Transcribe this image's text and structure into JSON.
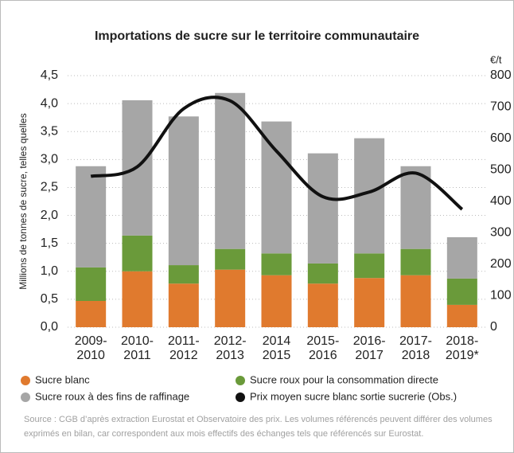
{
  "chart_data": {
    "type": "bar",
    "stacked": true,
    "title": "Importations de sucre sur le territoire communautaire",
    "ylabel": "Millions de tonnes de sucre, telles quelles",
    "y2label": "€/t",
    "categories": [
      "2009-\n2010",
      "2010-\n2011",
      "2011-\n2012",
      "2012-\n2013",
      "2014\n2015",
      "2015-\n2016",
      "2016-\n2017",
      "2017-\n2018",
      "2018-\n2019*"
    ],
    "series": [
      {
        "name": "Sucre blanc",
        "color": "#e07a2e",
        "values": [
          0.47,
          1.0,
          0.78,
          1.03,
          0.93,
          0.78,
          0.88,
          0.93,
          0.4
        ]
      },
      {
        "name": "Sucre roux pour la consommation directe",
        "color": "#6a9a3a",
        "values": [
          0.6,
          0.64,
          0.33,
          0.37,
          0.39,
          0.36,
          0.44,
          0.47,
          0.47
        ]
      },
      {
        "name": "Sucre roux à des fins de raffinage",
        "color": "#a6a6a6",
        "values": [
          1.81,
          2.42,
          2.66,
          2.79,
          2.36,
          1.97,
          2.06,
          1.48,
          0.74
        ]
      },
      {
        "name": "Prix moyen sucre blanc sortie sucrerie (Obs.)",
        "color": "#111111",
        "type": "line",
        "axis": "y2",
        "values": [
          480,
          510,
          695,
          720,
          560,
          415,
          430,
          490,
          375
        ]
      }
    ],
    "ylim": [
      0,
      4.5
    ],
    "yticks": [
      {
        "value": 0,
        "label": "0,0"
      },
      {
        "value": 0.5,
        "label": "0,5"
      },
      {
        "value": 1,
        "label": "1,0"
      },
      {
        "value": 1.5,
        "label": "1,5"
      },
      {
        "value": 2,
        "label": "2,0"
      },
      {
        "value": 2.5,
        "label": "2,5"
      },
      {
        "value": 3,
        "label": "3,0"
      },
      {
        "value": 3.5,
        "label": "3,5"
      },
      {
        "value": 4,
        "label": "4,0"
      },
      {
        "value": 4.5,
        "label": "4,5"
      }
    ],
    "y2lim": [
      0,
      800
    ],
    "y2ticks": [
      0,
      100,
      200,
      300,
      400,
      500,
      600,
      700,
      800
    ],
    "grid": true,
    "source": "Source : CGB d’après extraction Eurostat et Observatoire des prix. Les volumes référencés peuvent différer des volumes exprimés en bilan, car correspondent aux mois effectifs des échanges tels que référencés sur Eurostat."
  }
}
